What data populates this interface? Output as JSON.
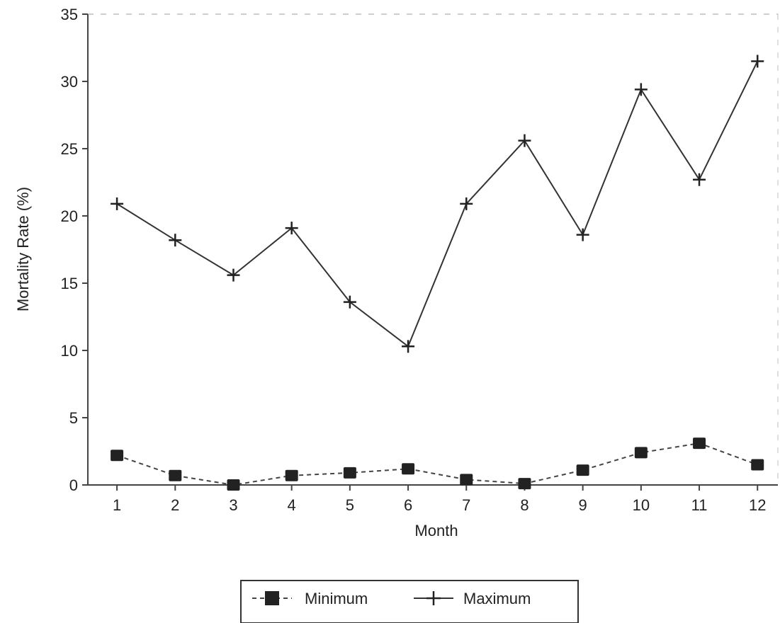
{
  "chart_data": {
    "type": "line",
    "title": "",
    "xlabel": "Month",
    "ylabel": "Mortality Rate (%)",
    "x": [
      1,
      2,
      3,
      4,
      5,
      6,
      7,
      8,
      9,
      10,
      11,
      12
    ],
    "x_tick_labels": [
      "1",
      "2",
      "3",
      "4",
      "5",
      "6",
      "7",
      "8",
      "9",
      "10",
      "11",
      "12"
    ],
    "y_tick_labels": [
      "0",
      "5",
      "10",
      "15",
      "20",
      "25",
      "30",
      "35"
    ],
    "xlim": [
      0.5,
      12.35
    ],
    "ylim": [
      0,
      35
    ],
    "grid": false,
    "legend_position": "bottom",
    "series": [
      {
        "name": "Minimum",
        "marker": "square",
        "line_style": "dashed",
        "values": [
          2.2,
          0.7,
          0.0,
          0.7,
          0.9,
          1.2,
          0.4,
          0.1,
          1.1,
          2.4,
          3.1,
          1.5
        ]
      },
      {
        "name": "Maximum",
        "marker": "plus",
        "line_style": "solid",
        "values": [
          20.9,
          18.2,
          15.6,
          19.1,
          13.6,
          10.3,
          20.9,
          25.6,
          18.6,
          29.4,
          22.7,
          31.5
        ]
      }
    ]
  }
}
